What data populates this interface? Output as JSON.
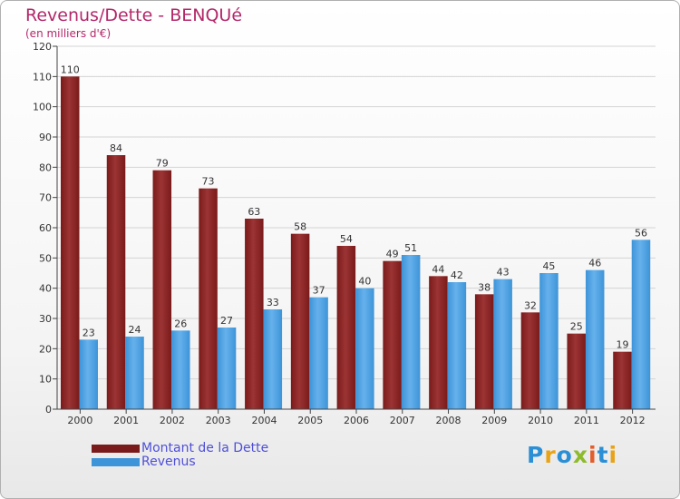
{
  "title": "Revenus/Dette - BENQUé",
  "subtitle": "(en milliers d'€)",
  "brand": {
    "text": "Proxiti",
    "letter_colors": [
      "#2b8fd6",
      "#e9a316",
      "#2b8fd6",
      "#8dbb2c",
      "#e35c2a",
      "#2b8fd6",
      "#e9a316"
    ]
  },
  "colors": {
    "debt": "#7a1a1a",
    "debt_light": "#9c3434",
    "revenue": "#3d94d8",
    "revenue_light": "#66b1ec",
    "title": "#b3286a",
    "legend_text": "#4f4fd8"
  },
  "chart_data": {
    "type": "bar",
    "title": "Revenus/Dette - BENQUé",
    "ylabel": "(en milliers d'€)",
    "xlabel": "",
    "ylim": [
      0,
      120
    ],
    "yticks": [
      0,
      10,
      20,
      30,
      40,
      50,
      60,
      70,
      80,
      90,
      100,
      110,
      120
    ],
    "categories": [
      "2000",
      "2001",
      "2002",
      "2003",
      "2004",
      "2005",
      "2006",
      "2007",
      "2008",
      "2009",
      "2010",
      "2011",
      "2012"
    ],
    "series": [
      {
        "name": "Montant de la Dette",
        "values": [
          110,
          84,
          79,
          73,
          63,
          58,
          54,
          49,
          44,
          38,
          32,
          25,
          19
        ]
      },
      {
        "name": "Revenus",
        "values": [
          23,
          24,
          26,
          27,
          33,
          37,
          40,
          51,
          42,
          43,
          45,
          46,
          56
        ]
      }
    ],
    "grid": true,
    "legend": "bottom-left"
  }
}
